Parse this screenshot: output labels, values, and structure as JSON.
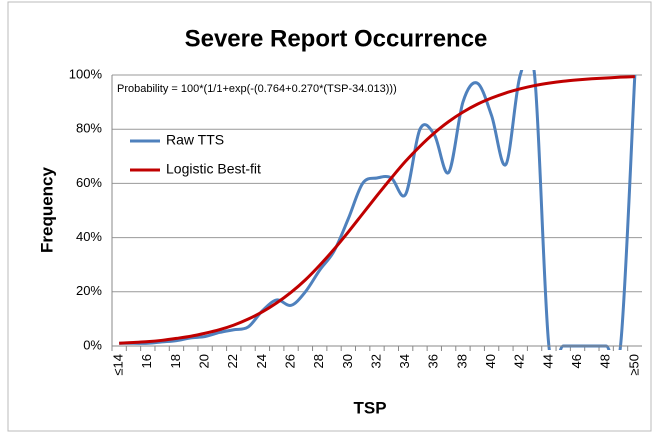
{
  "chart_data": {
    "type": "line",
    "title": "Severe Report Occurrence",
    "annotation": "Probability = 100*(1/1+exp(-(0.764+0.270*(TSP-34.013)))",
    "x_label": "TSP",
    "y_label": "Frequency",
    "categories": [
      "≤14",
      null,
      "16",
      null,
      "18",
      null,
      "20",
      null,
      "22",
      null,
      "24",
      null,
      "26",
      null,
      "28",
      null,
      "30",
      null,
      "32",
      null,
      "34",
      null,
      "36",
      null,
      "38",
      null,
      "40",
      null,
      "42",
      null,
      "44",
      null,
      "46",
      null,
      "48",
      null,
      "≥50"
    ],
    "series": [
      {
        "name": "Raw TTS",
        "color": "#4f81bd",
        "smooth": true,
        "values": [
          1,
          1,
          1,
          1.5,
          2,
          3,
          3.5,
          5,
          6,
          7,
          13,
          17,
          15,
          20,
          28,
          35,
          47,
          60,
          62,
          62,
          56,
          80,
          78,
          64,
          90,
          97,
          85,
          67,
          100,
          100,
          0,
          0,
          0,
          0,
          0,
          0,
          100
        ]
      },
      {
        "name": "Logistic Best-fit",
        "color": "#c00000",
        "smooth": true,
        "values": [
          1.0,
          1.3,
          1.6,
          2.1,
          2.8,
          3.6,
          4.7,
          6.0,
          7.7,
          9.9,
          12.6,
          15.9,
          19.8,
          24.4,
          29.8,
          35.7,
          42.1,
          48.8,
          55.5,
          62.0,
          68.2,
          73.7,
          78.6,
          82.8,
          86.3,
          89.2,
          91.5,
          93.4,
          94.9,
          96.1,
          97.0,
          97.7,
          98.2,
          98.6,
          98.9,
          99.2,
          99.4
        ]
      }
    ],
    "ylim": [
      0,
      100
    ],
    "yticks": [
      {
        "value": 0,
        "label": "0%"
      },
      {
        "value": 20,
        "label": "20%"
      },
      {
        "value": 40,
        "label": "40%"
      },
      {
        "value": 60,
        "label": "60%"
      },
      {
        "value": 80,
        "label": "80%"
      },
      {
        "value": 100,
        "label": "100%"
      }
    ],
    "grid": true,
    "legend": "upper left"
  }
}
